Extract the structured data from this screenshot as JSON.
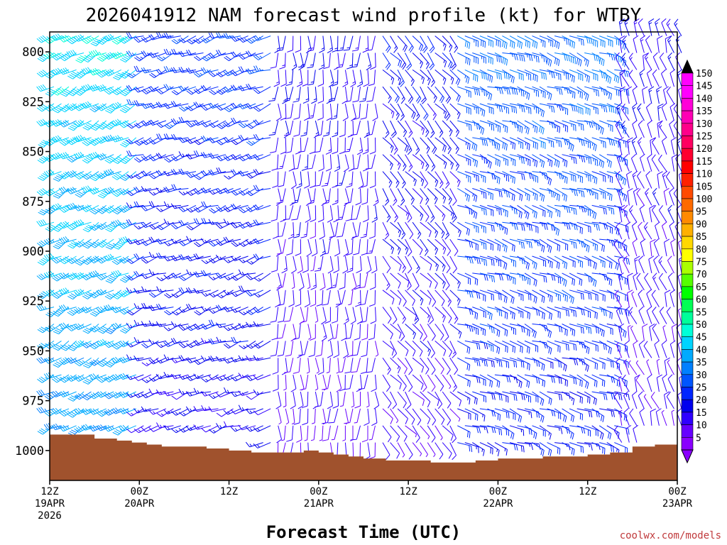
{
  "chart_data": {
    "type": "wind_barb_time_height",
    "title": "2026041912 NAM forecast wind profile (kt) for WTBY",
    "xlabel": "Forecast Time (UTC)",
    "credit": "coolwx.com/models",
    "units": "kt",
    "y_axis": {
      "quantity": "pressure (hPa)",
      "range": [
        790,
        1015
      ],
      "reversed": true,
      "ticks": [
        800,
        825,
        850,
        875,
        900,
        925,
        950,
        975,
        1000
      ]
    },
    "x_axis": {
      "range_hours": [
        0,
        84
      ],
      "ticks": [
        {
          "hour": 0,
          "l1": "12Z",
          "l2": "19APR",
          "l3": "2026"
        },
        {
          "hour": 12,
          "l1": "00Z",
          "l2": "20APR",
          "l3": ""
        },
        {
          "hour": 24,
          "l1": "12Z",
          "l2": "",
          "l3": ""
        },
        {
          "hour": 36,
          "l1": "00Z",
          "l2": "21APR",
          "l3": ""
        },
        {
          "hour": 48,
          "l1": "12Z",
          "l2": "",
          "l3": ""
        },
        {
          "hour": 60,
          "l1": "00Z",
          "l2": "22APR",
          "l3": ""
        },
        {
          "hour": 72,
          "l1": "12Z",
          "l2": "",
          "l3": ""
        },
        {
          "hour": 84,
          "l1": "00Z",
          "l2": "23APR",
          "l3": ""
        }
      ]
    },
    "colorbar": {
      "levels": [
        5,
        10,
        15,
        20,
        25,
        30,
        35,
        40,
        45,
        50,
        55,
        60,
        65,
        70,
        75,
        80,
        85,
        90,
        95,
        100,
        105,
        110,
        115,
        120,
        125,
        130,
        135,
        140,
        145,
        150
      ],
      "colors": [
        "#8a00ff",
        "#6600ff",
        "#2f00ff",
        "#0000ee",
        "#0026ff",
        "#0055ff",
        "#0080ff",
        "#00aaff",
        "#00d4ff",
        "#00ffd8",
        "#00ff9a",
        "#00ff55",
        "#00ff00",
        "#55ff00",
        "#aaff00",
        "#ffff00",
        "#ffd800",
        "#ffb000",
        "#ff8a00",
        "#ff6a00",
        "#ff4a00",
        "#ff2000",
        "#ff0000",
        "#ff0030",
        "#ff0060",
        "#ff008a",
        "#ff00b4",
        "#ff00d8",
        "#ff00ff",
        "#ff00ff"
      ]
    },
    "surface_pressure": [
      [
        0,
        992
      ],
      [
        3,
        992
      ],
      [
        6,
        994
      ],
      [
        9,
        995
      ],
      [
        11,
        996
      ],
      [
        13,
        997
      ],
      [
        15,
        998
      ],
      [
        18,
        998
      ],
      [
        21,
        999
      ],
      [
        24,
        1000
      ],
      [
        27,
        1001
      ],
      [
        30,
        1001
      ],
      [
        33,
        1001
      ],
      [
        34,
        1000
      ],
      [
        36,
        1001
      ],
      [
        38,
        1002
      ],
      [
        40,
        1003
      ],
      [
        42,
        1004
      ],
      [
        45,
        1005
      ],
      [
        48,
        1005
      ],
      [
        51,
        1006
      ],
      [
        54,
        1006
      ],
      [
        57,
        1005
      ],
      [
        60,
        1004
      ],
      [
        63,
        1004
      ],
      [
        66,
        1003
      ],
      [
        69,
        1003
      ],
      [
        72,
        1002
      ],
      [
        75,
        1001
      ],
      [
        78,
        998
      ],
      [
        81,
        997
      ],
      [
        84,
        997
      ]
    ],
    "description_levels_hpa": [
      800,
      825,
      850,
      875,
      900,
      925,
      950,
      975,
      1000
    ],
    "wind_regimes": [
      {
        "hours": [
          0,
          12
        ],
        "dir_deg": 240,
        "speed_kt": [
          35,
          45
        ]
      },
      {
        "hours": [
          12,
          30
        ],
        "dir_deg": 250,
        "speed_kt": [
          15,
          25
        ]
      },
      {
        "hours": [
          30,
          44
        ],
        "dir_deg": 180,
        "speed_kt": [
          10,
          15
        ]
      },
      {
        "hours": [
          44,
          54
        ],
        "dir_deg": 140,
        "speed_kt": [
          10,
          20
        ]
      },
      {
        "hours": [
          54,
          76
        ],
        "dir_deg": 110,
        "speed_kt": [
          20,
          30
        ]
      },
      {
        "hours": [
          76,
          84
        ],
        "dir_deg": 340,
        "speed_kt": [
          10,
          15
        ]
      }
    ]
  }
}
